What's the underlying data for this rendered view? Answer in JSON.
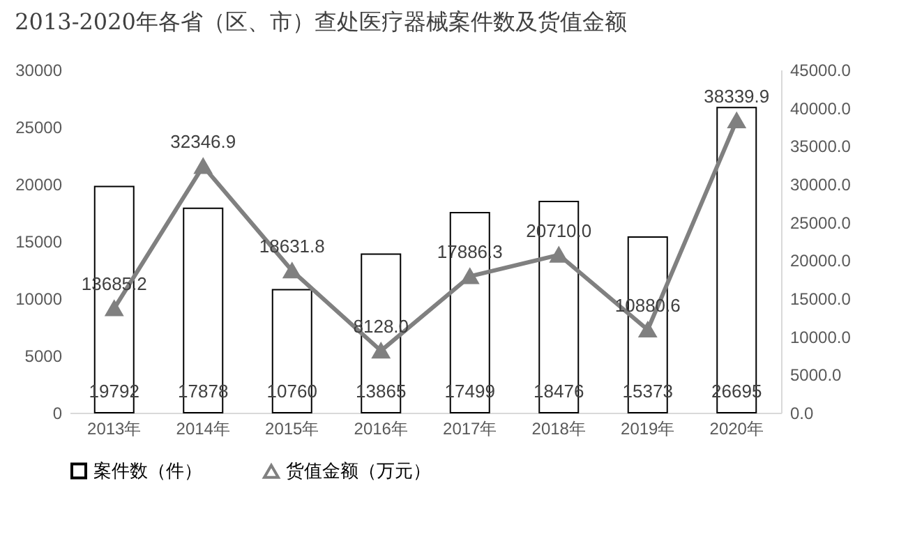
{
  "chart_data": {
    "type": "bar",
    "title": "2013-2020年各省（区、市）查处医疗器械案件数及货值金额",
    "categories": [
      "2013年",
      "2014年",
      "2015年",
      "2016年",
      "2017年",
      "2018年",
      "2019年",
      "2020年"
    ],
    "series": [
      {
        "name": "案件数（件）",
        "type": "bar",
        "color": "#ffffff",
        "values": [
          19792,
          17878,
          10760,
          13865,
          17499,
          18476,
          15373,
          26695
        ],
        "value_labels": [
          "19792",
          "17878",
          "10760",
          "13865",
          "17499",
          "18476",
          "15373",
          "26695"
        ]
      },
      {
        "name": "货值金额（万元）",
        "type": "line",
        "axis": "y2",
        "color": "#808080",
        "values": [
          13685.2,
          32346.9,
          18631.8,
          8128.0,
          17886.3,
          20710.0,
          10880.6,
          38339.9
        ],
        "value_labels": [
          "13685.2",
          "32346.9",
          "18631.8",
          "8128.0",
          "17886.3",
          "20710.0",
          "10880.6",
          "38339.9"
        ]
      }
    ],
    "ylim": [
      0,
      30000
    ],
    "yticks": [
      0,
      5000,
      10000,
      15000,
      20000,
      25000,
      30000
    ],
    "y2lim": [
      0,
      45000
    ],
    "y2ticks": [
      {
        "value": 0,
        "label": "0.0"
      },
      {
        "value": 5000,
        "label": "5000.0"
      },
      {
        "value": 10000,
        "label": "10000.0"
      },
      {
        "value": 15000,
        "label": "15000.0"
      },
      {
        "value": 20000,
        "label": "20000.0"
      },
      {
        "value": 25000,
        "label": "25000.0"
      },
      {
        "value": 30000,
        "label": "30000.0"
      },
      {
        "value": 35000,
        "label": "35000.0"
      },
      {
        "value": 40000,
        "label": "40000.0"
      },
      {
        "value": 45000,
        "label": "45000.0"
      }
    ],
    "marker": "triangle",
    "grid": false,
    "legend": "bottom"
  }
}
